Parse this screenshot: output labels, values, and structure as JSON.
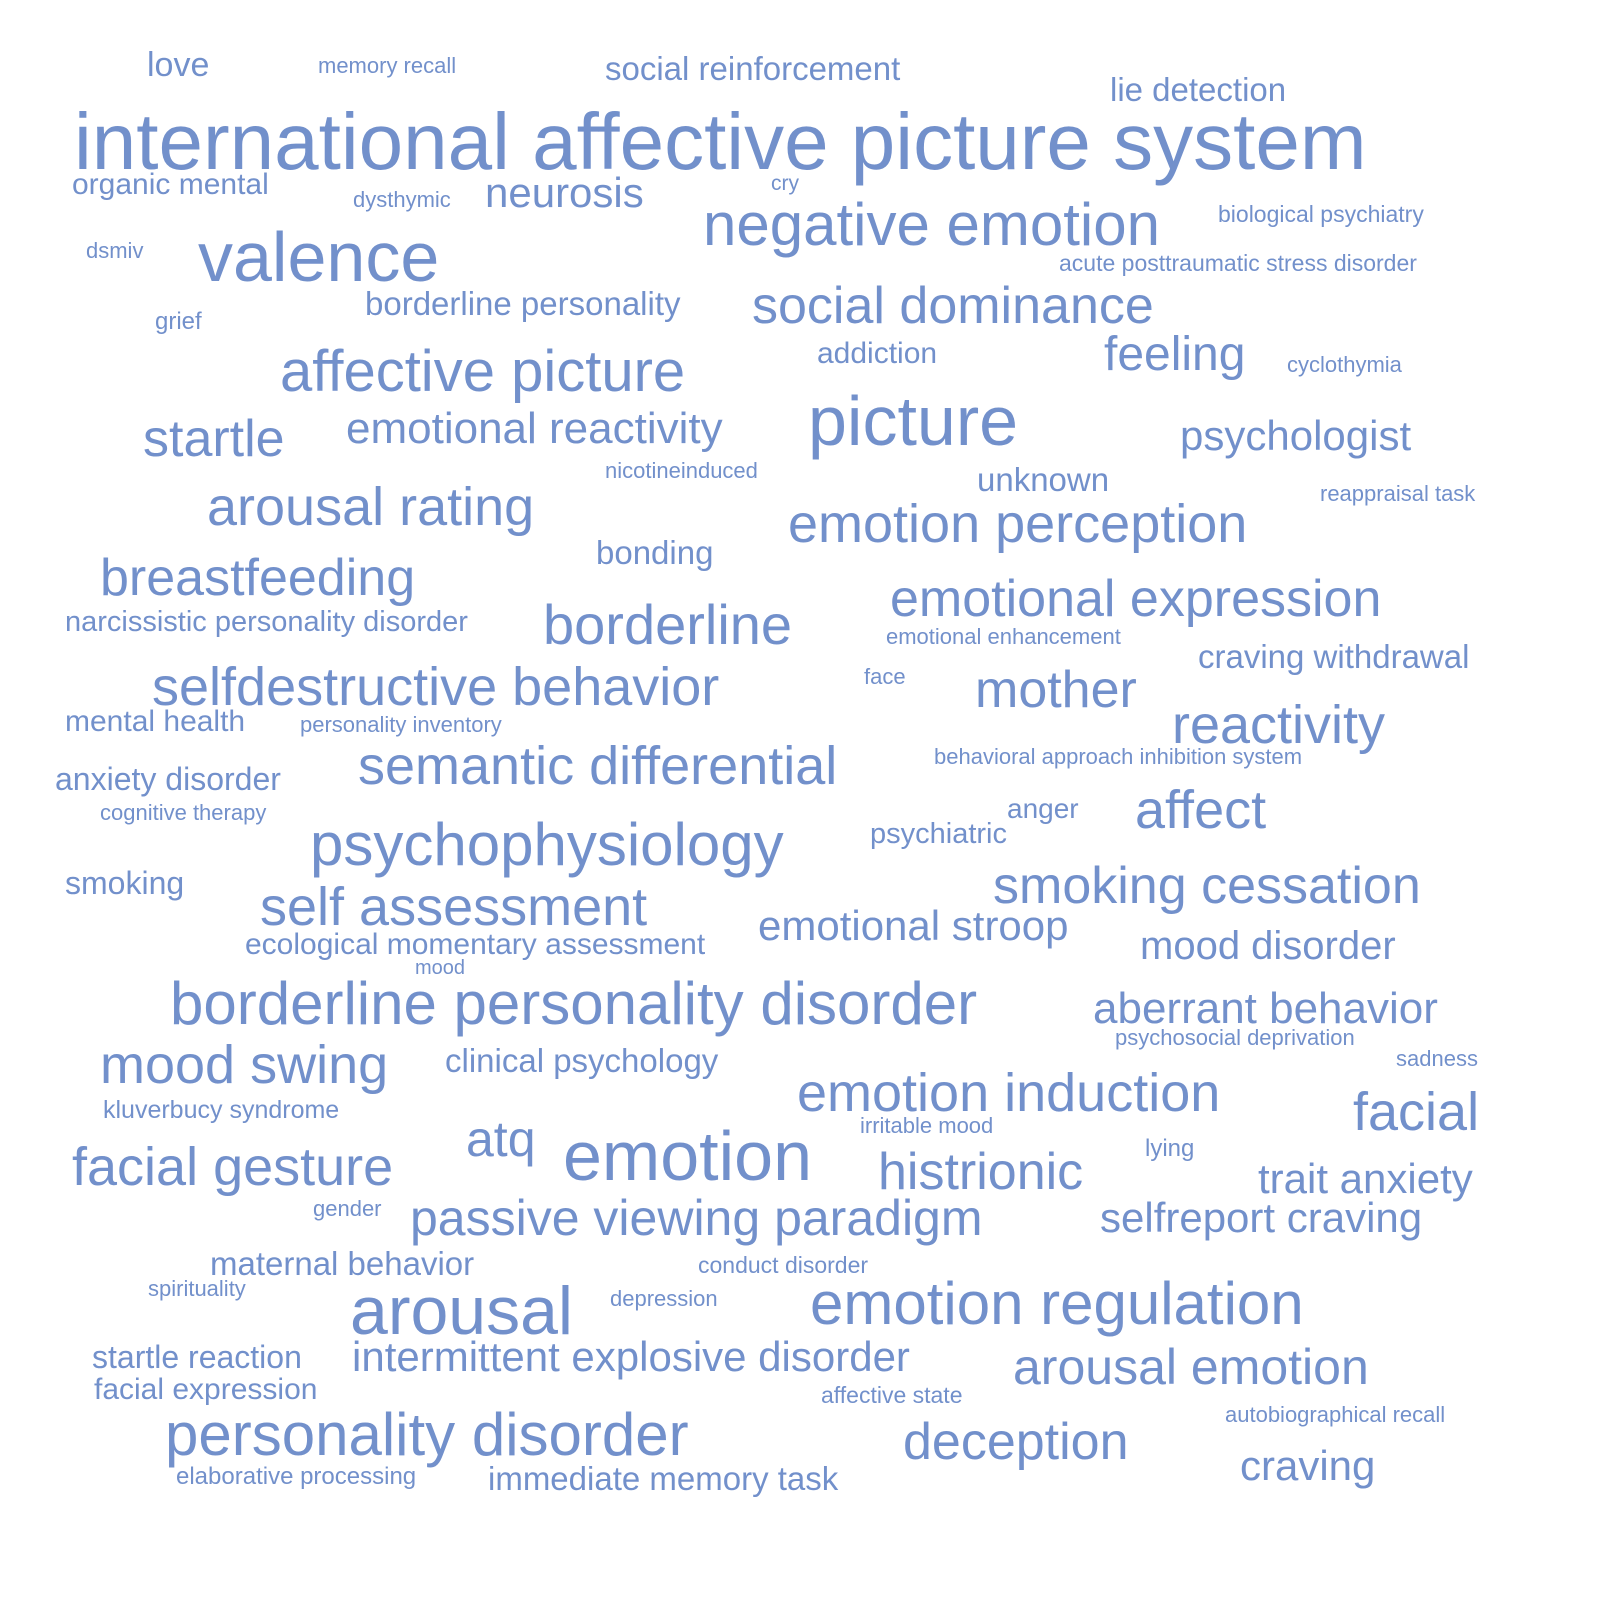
{
  "color": "#7290cb",
  "words": [
    {
      "text": "international affective picture system",
      "size": 7
    },
    {
      "text": "valence",
      "size": 6
    },
    {
      "text": "picture",
      "size": 6
    },
    {
      "text": "emotion",
      "size": 6
    },
    {
      "text": "arousal",
      "size": 6
    },
    {
      "text": "negative emotion",
      "size": 5
    },
    {
      "text": "affective picture",
      "size": 5
    },
    {
      "text": "borderline personality disorder",
      "size": 5
    },
    {
      "text": "psychophysiology",
      "size": 5
    },
    {
      "text": "emotion regulation",
      "size": 5
    },
    {
      "text": "personality disorder",
      "size": 5
    },
    {
      "text": "social dominance",
      "size": 4
    },
    {
      "text": "startle",
      "size": 4
    },
    {
      "text": "arousal rating",
      "size": 4
    },
    {
      "text": "emotion perception",
      "size": 4
    },
    {
      "text": "breastfeeding",
      "size": 4
    },
    {
      "text": "borderline",
      "size": 4
    },
    {
      "text": "emotional expression",
      "size": 4
    },
    {
      "text": "selfdestructive behavior",
      "size": 4
    },
    {
      "text": "mother",
      "size": 4
    },
    {
      "text": "reactivity",
      "size": 4
    },
    {
      "text": "semantic differential",
      "size": 4
    },
    {
      "text": "affect",
      "size": 4
    },
    {
      "text": "smoking cessation",
      "size": 4
    },
    {
      "text": "self assessment",
      "size": 4
    },
    {
      "text": "mood swing",
      "size": 4
    },
    {
      "text": "emotion induction",
      "size": 4
    },
    {
      "text": "facial",
      "size": 4
    },
    {
      "text": "facial gesture",
      "size": 4
    },
    {
      "text": "atq",
      "size": 4
    },
    {
      "text": "histrionic",
      "size": 4
    },
    {
      "text": "passive viewing paradigm",
      "size": 4
    },
    {
      "text": "arousal emotion",
      "size": 4
    },
    {
      "text": "deception",
      "size": 4
    },
    {
      "text": "neurosis",
      "size": 3
    },
    {
      "text": "feeling",
      "size": 3
    },
    {
      "text": "emotional reactivity",
      "size": 3
    },
    {
      "text": "psychologist",
      "size": 3
    },
    {
      "text": "emotional stroop",
      "size": 3
    },
    {
      "text": "mood disorder",
      "size": 3
    },
    {
      "text": "aberrant behavior",
      "size": 3
    },
    {
      "text": "trait anxiety",
      "size": 3
    },
    {
      "text": "selfreport craving",
      "size": 3
    },
    {
      "text": "intermittent explosive disorder",
      "size": 3
    },
    {
      "text": "craving",
      "size": 3
    },
    {
      "text": "social reinforcement",
      "size": 2
    },
    {
      "text": "lie detection",
      "size": 2
    },
    {
      "text": "love",
      "size": 2
    },
    {
      "text": "borderline personality",
      "size": 2
    },
    {
      "text": "unknown",
      "size": 2
    },
    {
      "text": "bonding",
      "size": 2
    },
    {
      "text": "craving withdrawal",
      "size": 2
    },
    {
      "text": "anxiety disorder",
      "size": 2
    },
    {
      "text": "smoking",
      "size": 2
    },
    {
      "text": "clinical psychology",
      "size": 2
    },
    {
      "text": "maternal behavior",
      "size": 2
    },
    {
      "text": "startle reaction",
      "size": 2
    },
    {
      "text": "immediate memory task",
      "size": 2
    },
    {
      "text": "addiction",
      "size": 2
    },
    {
      "text": "organic mental",
      "size": 2
    },
    {
      "text": "narcissistic personality disorder",
      "size": 2
    },
    {
      "text": "mental health",
      "size": 2
    },
    {
      "text": "psychiatric",
      "size": 2
    },
    {
      "text": "anger",
      "size": 2
    },
    {
      "text": "ecological momentary assessment",
      "size": 2
    },
    {
      "text": "facial expression",
      "size": 2
    },
    {
      "text": "memory recall",
      "size": 1
    },
    {
      "text": "cry",
      "size": 1
    },
    {
      "text": "dysthymic",
      "size": 1
    },
    {
      "text": "biological psychiatry",
      "size": 1
    },
    {
      "text": "dsmiv",
      "size": 1
    },
    {
      "text": "acute posttraumatic stress disorder",
      "size": 1
    },
    {
      "text": "grief",
      "size": 1
    },
    {
      "text": "cyclothymia",
      "size": 1
    },
    {
      "text": "nicotineinduced",
      "size": 1
    },
    {
      "text": "reappraisal task",
      "size": 1
    },
    {
      "text": "emotional enhancement",
      "size": 1
    },
    {
      "text": "face",
      "size": 1
    },
    {
      "text": "personality inventory",
      "size": 1
    },
    {
      "text": "behavioral approach inhibition system",
      "size": 1
    },
    {
      "text": "cognitive therapy",
      "size": 1
    },
    {
      "text": "mood",
      "size": 1
    },
    {
      "text": "psychosocial deprivation",
      "size": 1
    },
    {
      "text": "sadness",
      "size": 1
    },
    {
      "text": "kluverbucy syndrome",
      "size": 1
    },
    {
      "text": "irritable mood",
      "size": 1
    },
    {
      "text": "lying",
      "size": 1
    },
    {
      "text": "gender",
      "size": 1
    },
    {
      "text": "conduct disorder",
      "size": 1
    },
    {
      "text": "spirituality",
      "size": 1
    },
    {
      "text": "depression",
      "size": 1
    },
    {
      "text": "affective state",
      "size": 1
    },
    {
      "text": "autobiographical recall",
      "size": 1
    },
    {
      "text": "elaborative processing",
      "size": 1
    }
  ]
}
